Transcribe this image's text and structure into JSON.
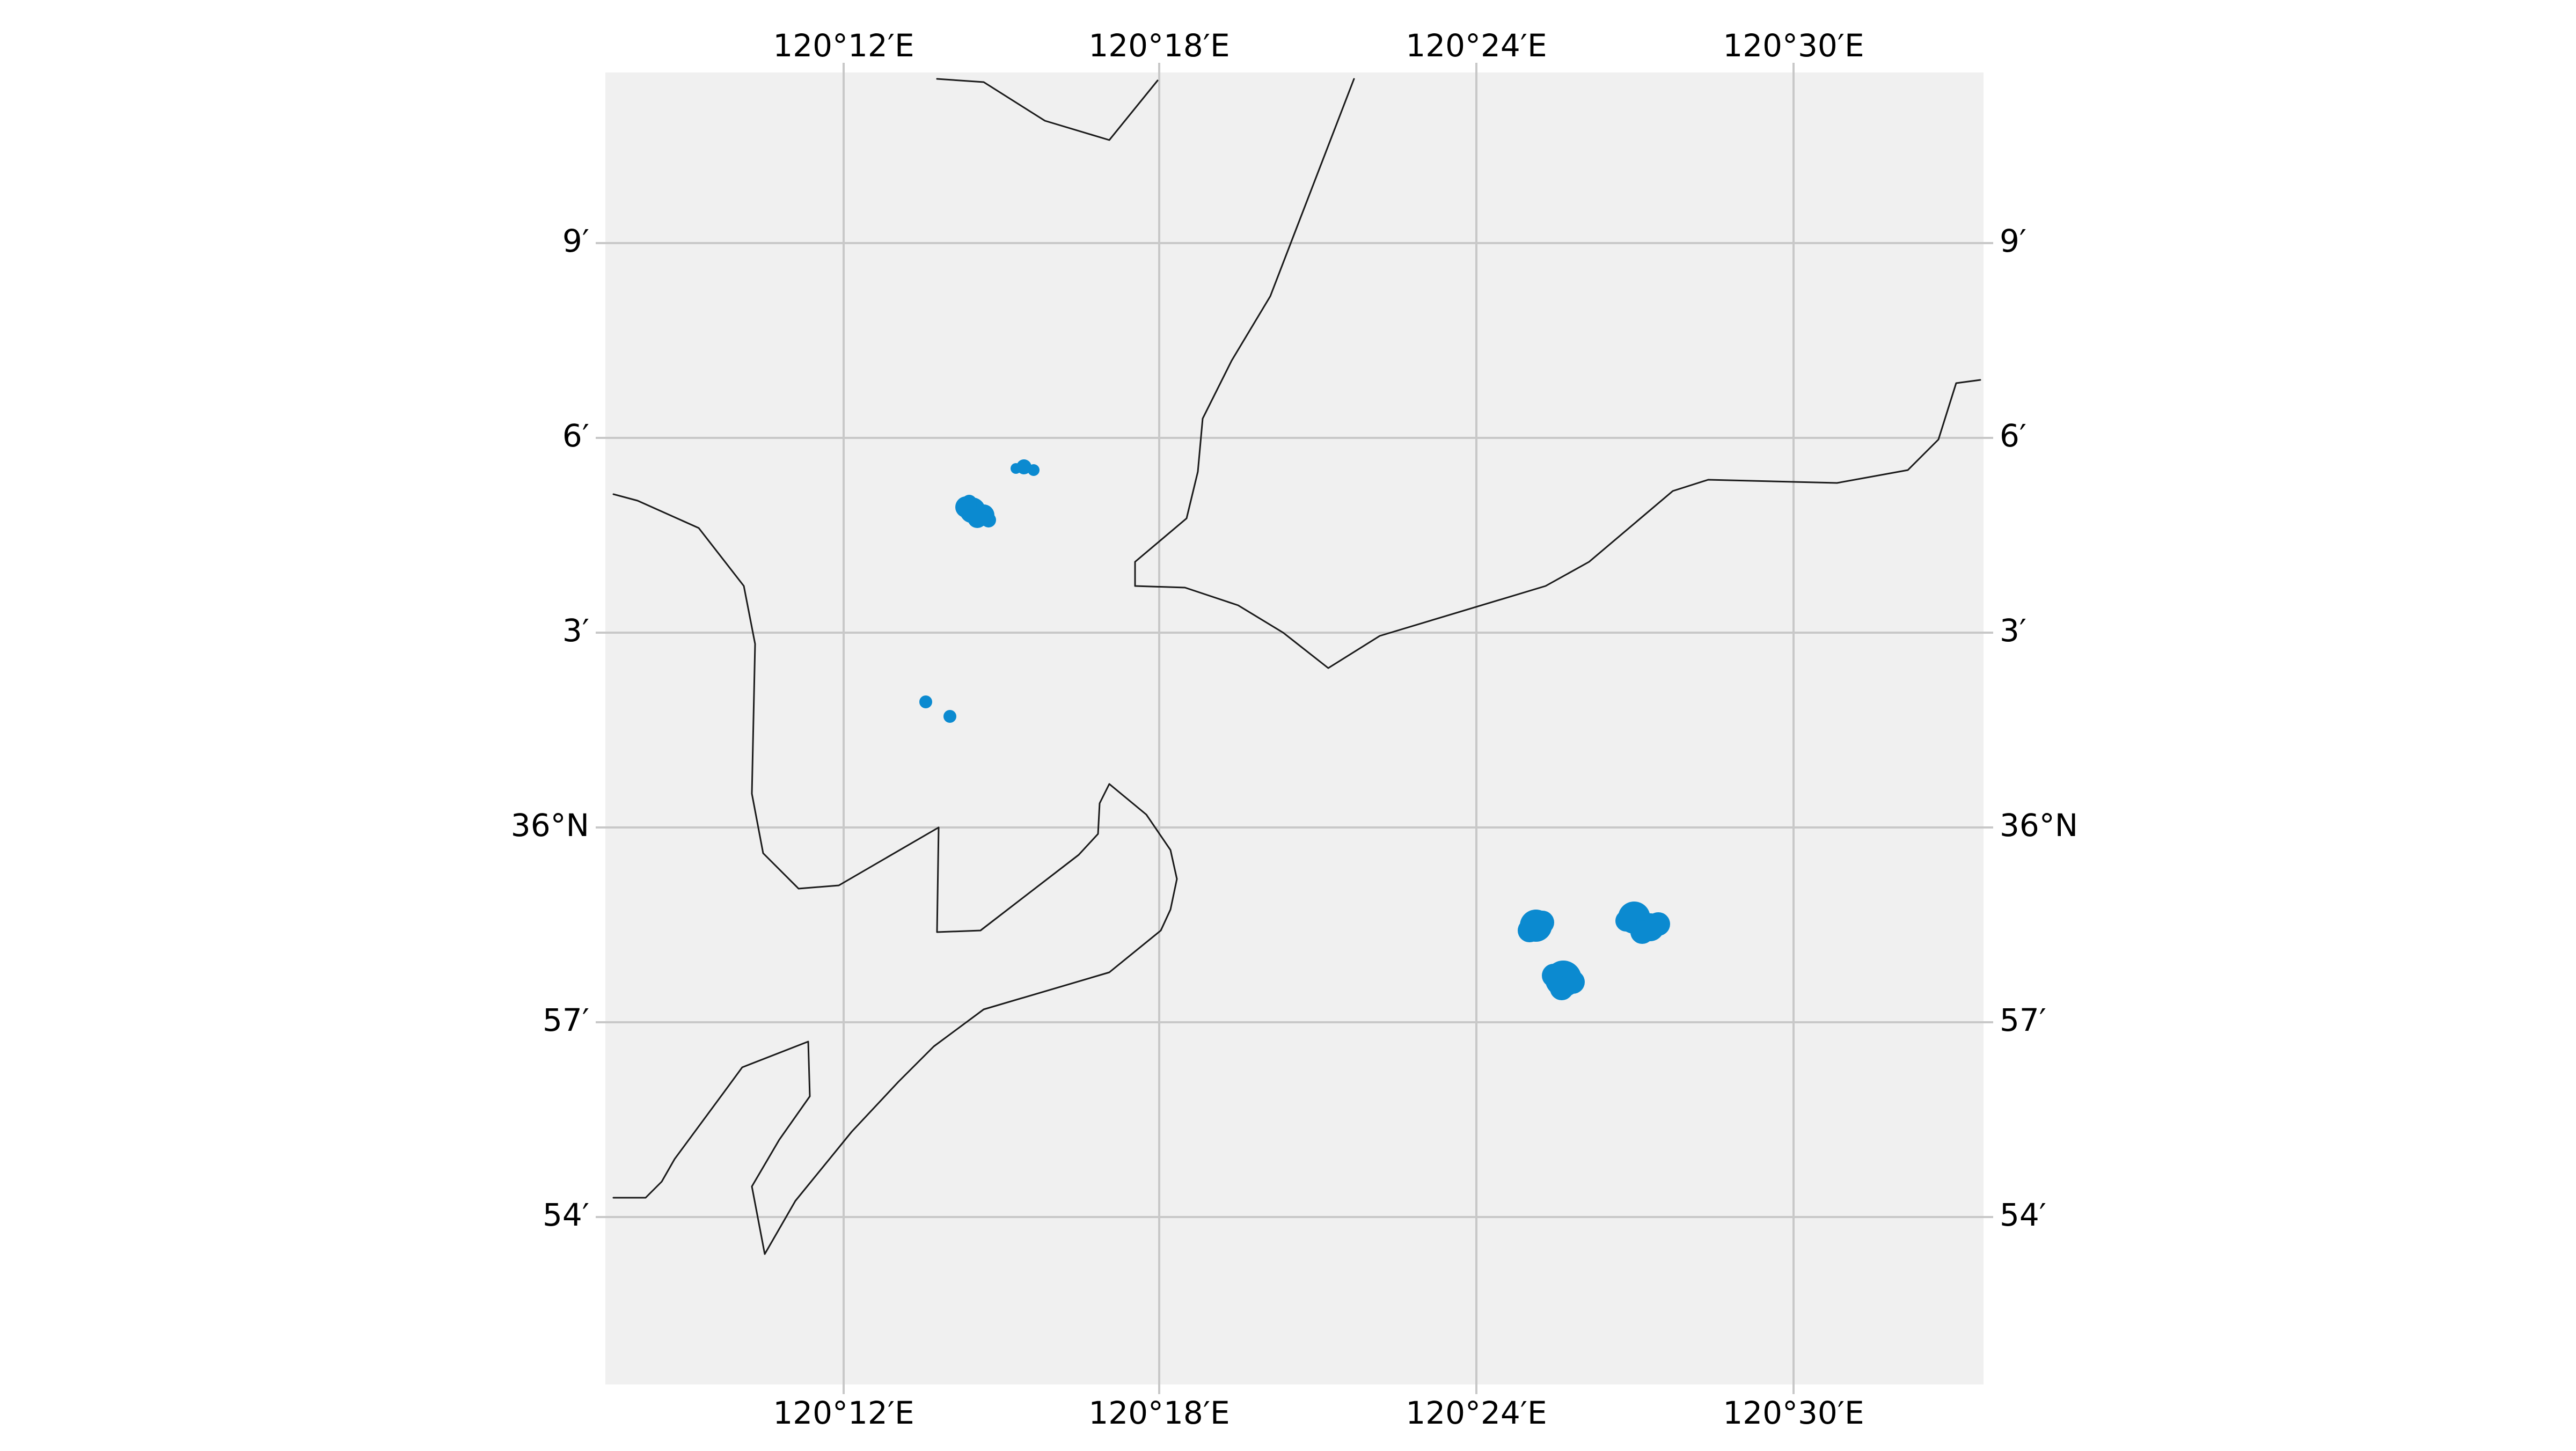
{
  "map": {
    "colors": {
      "background": "#f0f0f0",
      "grid": "#c8c8c8",
      "coastline": "#1a1a1a",
      "markers": "#0b8ad0"
    },
    "longitude_labels": [
      {
        "lon": 120.2,
        "label": "120°12′E"
      },
      {
        "lon": 120.3,
        "label": "120°18′E"
      },
      {
        "lon": 120.4,
        "label": "120°24′E"
      },
      {
        "lon": 120.5,
        "label": "120°30′E"
      }
    ],
    "latitude_labels": [
      {
        "lat": 36.15,
        "label": "9′"
      },
      {
        "lat": 36.1,
        "label": "6′"
      },
      {
        "lat": 36.05,
        "label": "3′"
      },
      {
        "lat": 36.0,
        "label": "36°N"
      },
      {
        "lat": 35.95,
        "label": "57′"
      },
      {
        "lat": 35.9,
        "label": "54′"
      }
    ],
    "extent": {
      "lon_min": 120.126,
      "lon_max": 120.56,
      "lat_min": 35.837,
      "lat_max": 36.193
    }
  }
}
